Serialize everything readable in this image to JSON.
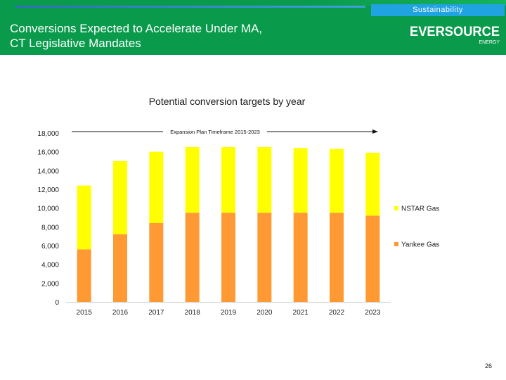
{
  "header": {
    "title_line1": "Conversions Expected to Accelerate Under MA,",
    "title_line2": "CT Legislative Mandates",
    "section_tab": "Sustainability",
    "logo_text": "EVERSOURCE",
    "logo_subtext": "ENERGY"
  },
  "colors": {
    "header_green": "#0a9a4c",
    "tab_blue": "#1fa3e1",
    "nstar": "#ffff00",
    "yankee": "#ff9933"
  },
  "page_number": "26",
  "chart_data": {
    "type": "bar",
    "stacked": true,
    "title": "Potential conversion targets by year",
    "categories": [
      "2015",
      "2016",
      "2017",
      "2018",
      "2019",
      "2020",
      "2021",
      "2022",
      "2023"
    ],
    "series": [
      {
        "name": "Yankee Gas",
        "color": "#ff9933",
        "values": [
          5600,
          7200,
          8400,
          9500,
          9500,
          9500,
          9500,
          9500,
          9200
        ]
      },
      {
        "name": "NSTAR Gas",
        "color": "#ffff00",
        "values": [
          6800,
          7800,
          7600,
          7000,
          7000,
          7000,
          6900,
          6800,
          6700
        ]
      }
    ],
    "ylim": [
      0,
      18000
    ],
    "yticks": [
      "0",
      "2,000",
      "4,000",
      "6,000",
      "8,000",
      "10,000",
      "12,000",
      "14,000",
      "16,000",
      "18,000"
    ],
    "grid": false,
    "legend": "right",
    "annotation": "Expansion Plan Timeframe 2015-2023"
  }
}
